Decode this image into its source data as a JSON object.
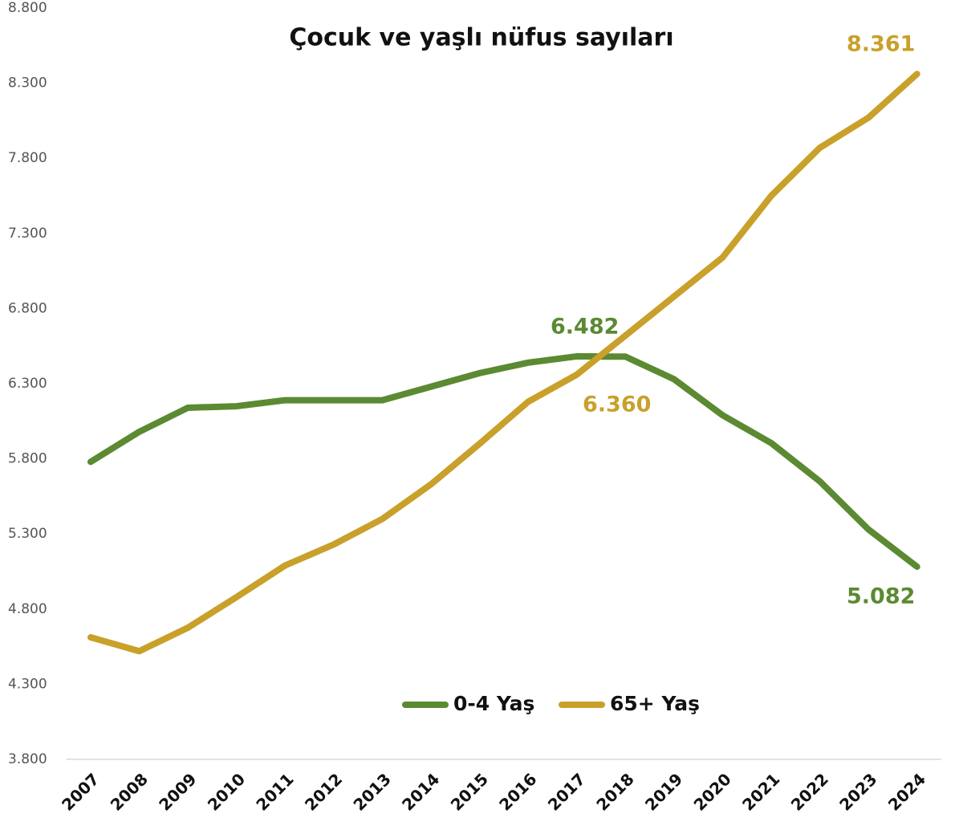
{
  "chart_data": {
    "type": "line",
    "title": "Çocuk ve yaşlı nüfus sayıları",
    "categories": [
      "2007",
      "2008",
      "2009",
      "2010",
      "2011",
      "2012",
      "2013",
      "2014",
      "2015",
      "2016",
      "2017",
      "2018",
      "2019",
      "2020",
      "2021",
      "2022",
      "2023",
      "2024"
    ],
    "series": [
      {
        "name": "0-4 Yaş",
        "color": "#5b8a32",
        "values": [
          5780,
          5980,
          6140,
          6150,
          6190,
          6190,
          6190,
          6280,
          6370,
          6440,
          6482,
          6480,
          6330,
          6090,
          5905,
          5650,
          5330,
          5082
        ],
        "value_labels": [
          null,
          null,
          null,
          null,
          null,
          null,
          null,
          null,
          null,
          null,
          "6.482",
          null,
          null,
          null,
          null,
          null,
          null,
          "5.082"
        ]
      },
      {
        "name": "65+ Yaş",
        "color": "#c9a02a",
        "values": [
          4612,
          4520,
          4676,
          4880,
          5090,
          5230,
          5400,
          5630,
          5900,
          6180,
          6360,
          6620,
          6880,
          7140,
          7550,
          7870,
          8070,
          8361
        ],
        "value_labels": [
          null,
          null,
          null,
          null,
          null,
          null,
          null,
          null,
          null,
          null,
          "6.360",
          null,
          null,
          null,
          null,
          null,
          null,
          "8.361"
        ]
      }
    ],
    "ylim": [
      3800,
      8800
    ],
    "yticks": [
      {
        "value": 3800,
        "label": "3.800"
      },
      {
        "value": 4300,
        "label": "4.300"
      },
      {
        "value": 4800,
        "label": "4.800"
      },
      {
        "value": 5300,
        "label": "5.300"
      },
      {
        "value": 5800,
        "label": "5.800"
      },
      {
        "value": 6300,
        "label": "6.300"
      },
      {
        "value": 6800,
        "label": "6.800"
      },
      {
        "value": 7300,
        "label": "7.300"
      },
      {
        "value": 7800,
        "label": "7.800"
      },
      {
        "value": 8300,
        "label": "8.300"
      },
      {
        "value": 8800,
        "label": "8.800"
      }
    ]
  }
}
